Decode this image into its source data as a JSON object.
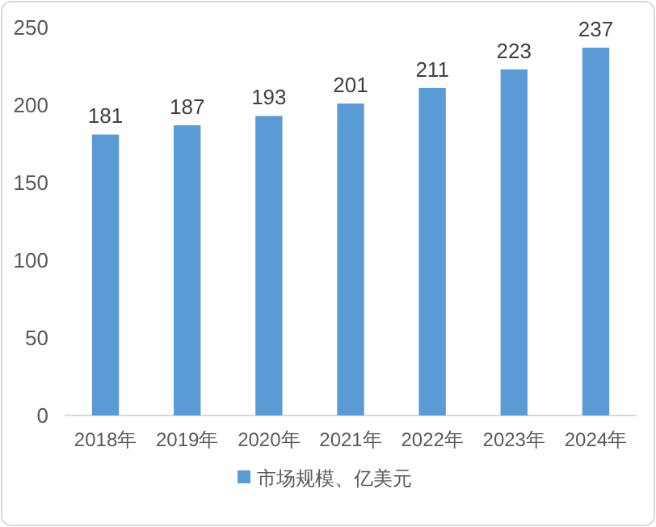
{
  "chart_data": {
    "type": "bar",
    "categories": [
      "2018年",
      "2019年",
      "2020年",
      "2021年",
      "2022年",
      "2023年",
      "2024年"
    ],
    "series": [
      {
        "name": "市场规模、亿美元",
        "color": "#5b9bd5",
        "values": [
          181,
          187,
          193,
          201,
          211,
          223,
          237
        ]
      }
    ],
    "ylim": [
      0,
      250
    ],
    "yticks": [
      0,
      50,
      100,
      150,
      200,
      250
    ],
    "data_labels": true,
    "legend": "bottom",
    "grid": false
  }
}
